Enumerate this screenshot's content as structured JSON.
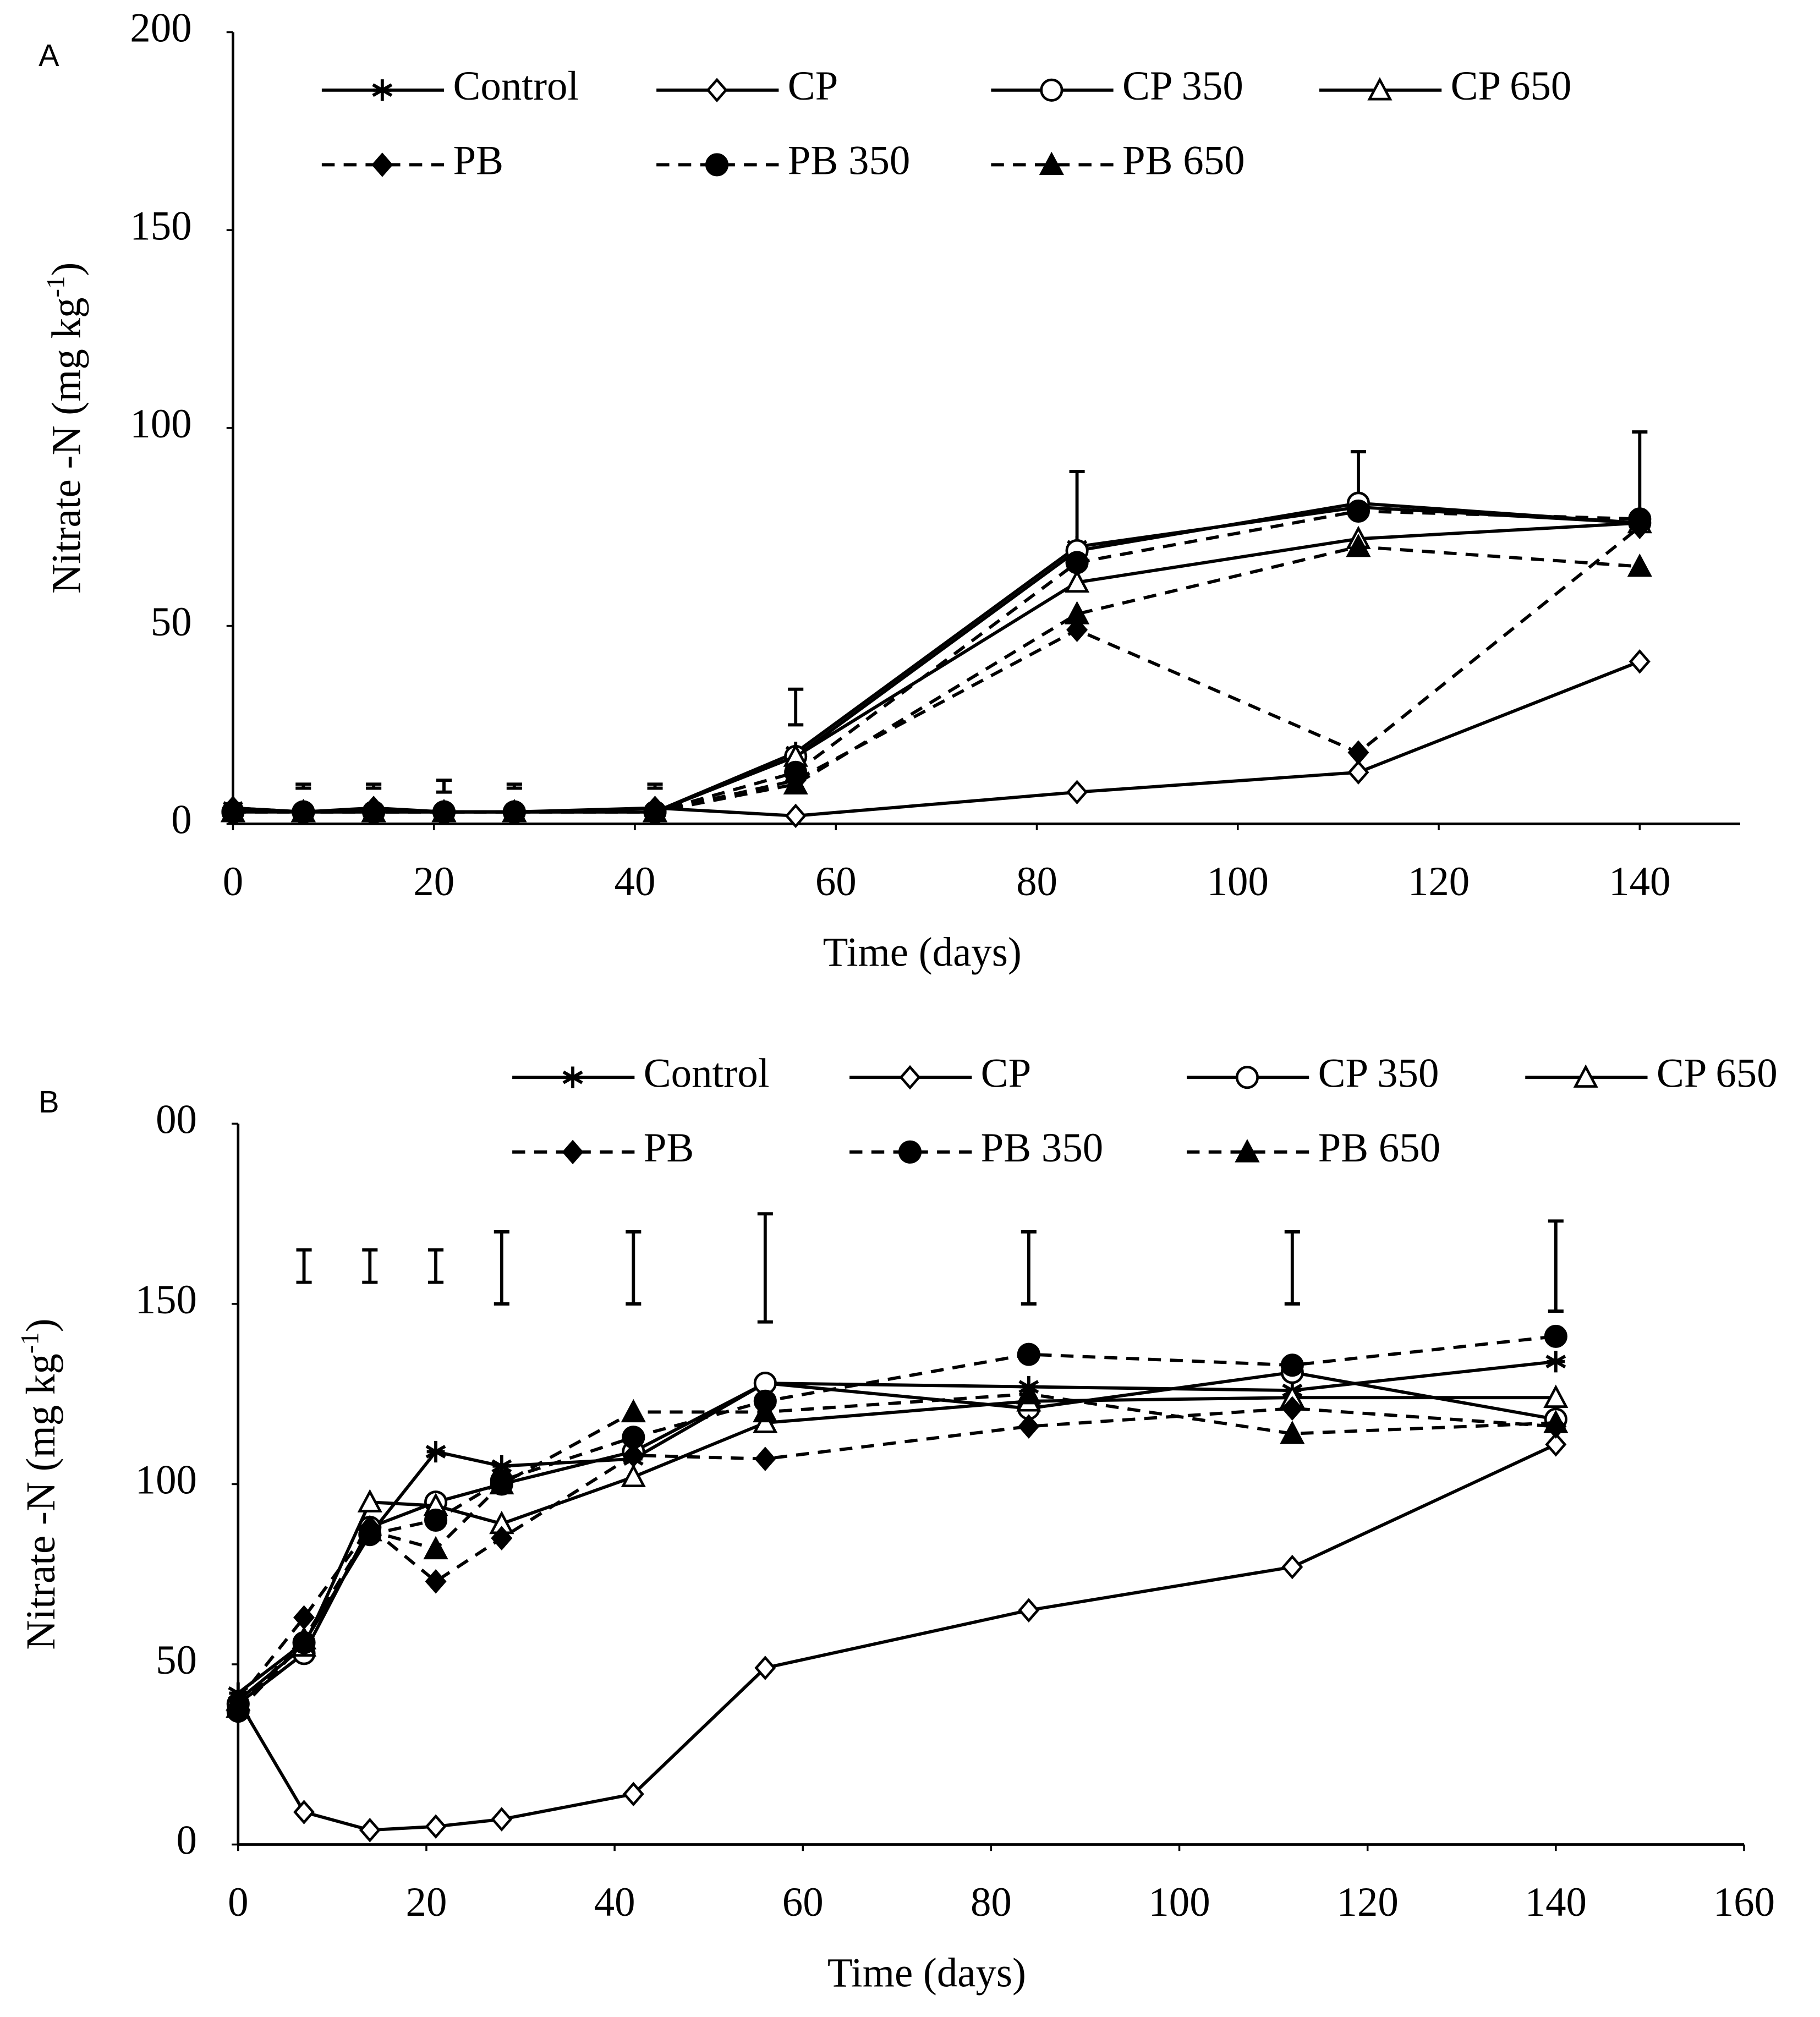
{
  "chart_data": [
    {
      "type": "line",
      "panel": "A",
      "xlabel": "Time (days)",
      "ylabel": "Nitrate -N (mg kg",
      "ylabel_sup": "-1",
      "ylabel_end": ")",
      "x": [
        0,
        7,
        14,
        21,
        28,
        42,
        56,
        84,
        112,
        140
      ],
      "xlim": [
        0,
        150
      ],
      "xticks": [
        0,
        20,
        40,
        60,
        80,
        100,
        120,
        140
      ],
      "ylim": [
        0,
        200
      ],
      "yticks": [
        0,
        50,
        100,
        150,
        200
      ],
      "series": [
        {
          "name": "Control",
          "color": "#000000",
          "marker": "star",
          "dashed": false,
          "values": [
            4,
            3,
            3,
            3,
            3,
            3,
            18,
            70,
            80,
            76
          ]
        },
        {
          "name": "CP",
          "color": "#000000",
          "marker": "diamond-open",
          "dashed": false,
          "values": [
            4,
            3,
            4,
            3,
            3,
            4,
            2,
            8,
            13,
            41
          ]
        },
        {
          "name": "CP 350",
          "color": "#000000",
          "marker": "circle-open",
          "dashed": false,
          "values": [
            3,
            3,
            3,
            3,
            3,
            3,
            17,
            69,
            81,
            76
          ]
        },
        {
          "name": "CP 650",
          "color": "#000000",
          "marker": "triangle-open",
          "dashed": false,
          "values": [
            3,
            3,
            3,
            3,
            3,
            3,
            17,
            61,
            72,
            76
          ]
        },
        {
          "name": "PB",
          "color": "#000000",
          "marker": "diamond",
          "dashed": true,
          "values": [
            3,
            3,
            3,
            3,
            3,
            3,
            11,
            49,
            18,
            75
          ]
        },
        {
          "name": "PB 350",
          "color": "#000000",
          "marker": "circle",
          "dashed": true,
          "values": [
            3,
            3,
            3,
            3,
            3,
            3,
            13,
            66,
            79,
            77
          ]
        },
        {
          "name": "PB 650",
          "color": "#000000",
          "marker": "triangle",
          "dashed": true,
          "values": [
            3,
            3,
            3,
            3,
            3,
            3,
            10,
            53,
            70,
            65
          ]
        }
      ],
      "error_bars": {
        "x": [
          7,
          14,
          21,
          28,
          42,
          56,
          84,
          112,
          140
        ],
        "low": [
          9,
          9,
          8,
          9,
          9,
          25,
          70,
          80,
          77
        ],
        "high": [
          10,
          10,
          11,
          10,
          10,
          34,
          89,
          94,
          99
        ]
      }
    },
    {
      "type": "line",
      "panel": "B",
      "xlabel": "Time (days)",
      "ylabel": "Nitrate -N (mg kg",
      "ylabel_sup": "-1",
      "ylabel_end": ")",
      "x": [
        0,
        7,
        14,
        21,
        28,
        42,
        56,
        84,
        112,
        140
      ],
      "xlim": [
        0,
        160
      ],
      "xticks": [
        0,
        20,
        40,
        60,
        80,
        100,
        120,
        140,
        160
      ],
      "ylim": [
        0,
        200
      ],
      "yticks": [
        0,
        50,
        100,
        150,
        {
          "value": 200,
          "label": "00"
        }
      ],
      "series": [
        {
          "name": "Control",
          "color": "#000000",
          "marker": "star",
          "dashed": false,
          "values": [
            42,
            56,
            86,
            109,
            105,
            107,
            128,
            127,
            126,
            134
          ]
        },
        {
          "name": "CP",
          "color": "#000000",
          "marker": "diamond-open",
          "dashed": false,
          "values": [
            40,
            9,
            4,
            5,
            7,
            14,
            49,
            65,
            77,
            111
          ]
        },
        {
          "name": "CP 350",
          "color": "#000000",
          "marker": "circle-open",
          "dashed": false,
          "values": [
            39,
            53,
            88,
            95,
            100,
            109,
            128,
            121,
            131,
            118
          ]
        },
        {
          "name": "CP 650",
          "color": "#000000",
          "marker": "triangle-open",
          "dashed": false,
          "values": [
            40,
            55,
            95,
            94,
            89,
            102,
            117,
            123,
            124,
            124
          ]
        },
        {
          "name": "PB",
          "color": "#000000",
          "marker": "diamond",
          "dashed": true,
          "values": [
            40,
            63,
            88,
            73,
            85,
            108,
            107,
            116,
            121,
            116
          ]
        },
        {
          "name": "PB 350",
          "color": "#000000",
          "marker": "circle",
          "dashed": true,
          "values": [
            37,
            56,
            86,
            90,
            101,
            113,
            123,
            136,
            133,
            141
          ]
        },
        {
          "name": "PB 650",
          "color": "#000000",
          "marker": "triangle",
          "dashed": true,
          "values": [
            38,
            57,
            87,
            82,
            100,
            120,
            120,
            125,
            114,
            117
          ]
        }
      ],
      "error_bars": {
        "x": [
          7,
          14,
          21,
          28,
          42,
          56,
          84,
          112,
          140
        ],
        "low": [
          156,
          156,
          156,
          150,
          150,
          145,
          150,
          150,
          148
        ],
        "high": [
          165,
          165,
          165,
          170,
          170,
          175,
          170,
          170,
          173
        ]
      }
    }
  ]
}
